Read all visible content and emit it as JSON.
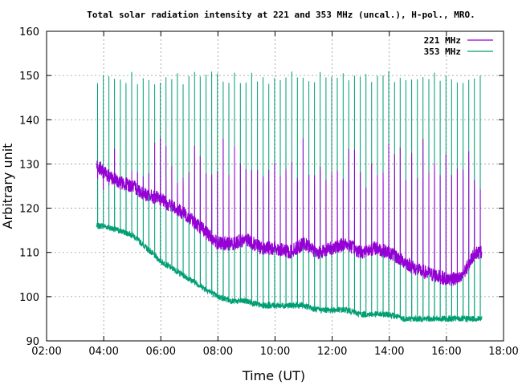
{
  "chart_data": {
    "type": "line",
    "title": "Total solar radiation intensity at 221 and 353 MHz (uncal.), H-pol., MRO.",
    "xlabel": "Time (UT)",
    "ylabel": "Arbitrary unit",
    "xlim": [
      2,
      18
    ],
    "ylim": [
      90,
      160
    ],
    "x_ticks": [
      "02:00",
      "04:00",
      "06:00",
      "08:00",
      "10:00",
      "12:00",
      "14:00",
      "16:00",
      "18:00"
    ],
    "y_ticks": [
      "90",
      "100",
      "110",
      "120",
      "130",
      "140",
      "150",
      "160"
    ],
    "grid": true,
    "legend_position": "top-right",
    "series": [
      {
        "name": "221 MHz",
        "color": "#9400d3",
        "x": [
          3.75,
          4.0,
          4.5,
          5.0,
          5.5,
          6.0,
          6.5,
          7.0,
          7.5,
          8.0,
          8.5,
          9.0,
          9.5,
          10.0,
          10.5,
          11.0,
          11.5,
          12.0,
          12.5,
          13.0,
          13.5,
          14.0,
          14.5,
          15.0,
          15.5,
          16.0,
          16.5,
          17.0,
          17.25
        ],
        "y": [
          130,
          128,
          126,
          125,
          123,
          122,
          120,
          118,
          115,
          112,
          112,
          113,
          111,
          111,
          110,
          112,
          110,
          111,
          112,
          110,
          111,
          110,
          108,
          106,
          105,
          104,
          104,
          110,
          110
        ]
      },
      {
        "name": "353 MHz",
        "color": "#009e73",
        "x": [
          3.75,
          4.0,
          4.5,
          5.0,
          5.5,
          6.0,
          6.5,
          7.0,
          7.5,
          8.0,
          8.5,
          9.0,
          9.5,
          10.0,
          10.5,
          11.0,
          11.5,
          12.0,
          12.5,
          13.0,
          13.5,
          14.0,
          14.5,
          15.0,
          15.5,
          16.0,
          16.5,
          17.0,
          17.25
        ],
        "y": [
          116,
          116,
          115,
          114,
          111,
          108,
          106,
          104,
          102,
          100,
          99,
          99,
          98,
          98,
          98,
          98,
          97,
          97,
          97,
          96,
          96,
          96,
          95,
          95,
          95,
          95,
          95,
          95,
          95
        ]
      }
    ]
  }
}
